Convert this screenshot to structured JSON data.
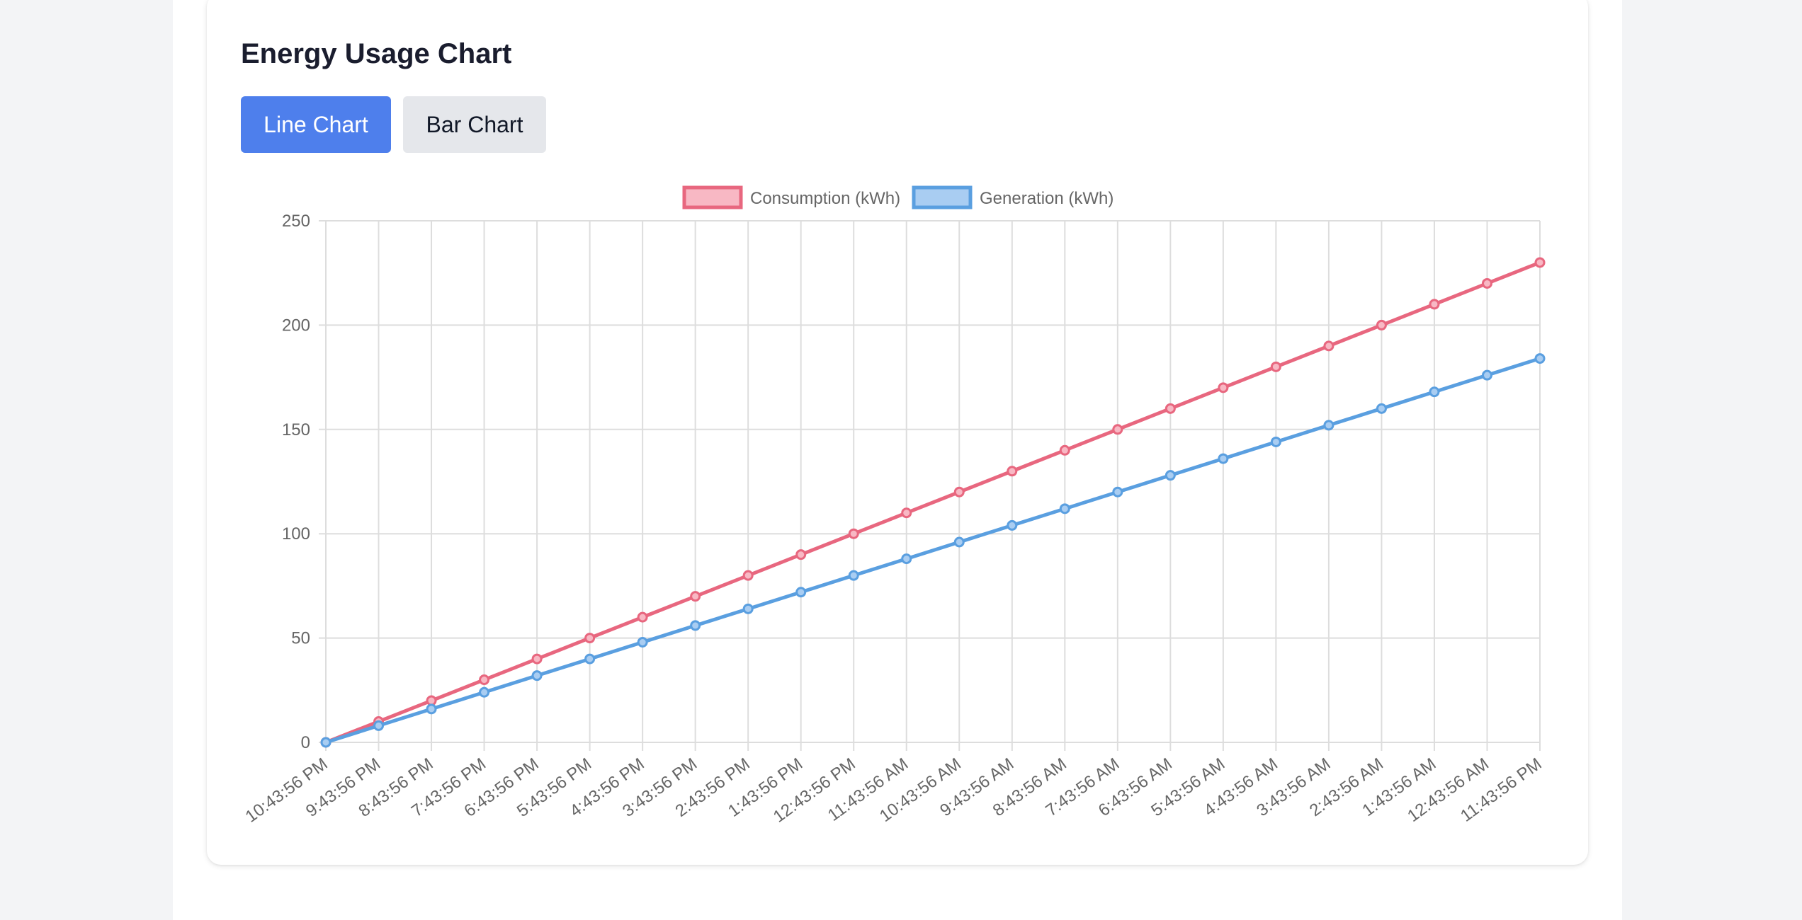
{
  "header": {
    "title": "Energy Usage Chart"
  },
  "toolbar": {
    "line_label": "Line Chart",
    "bar_label": "Bar Chart"
  },
  "chart_data": {
    "type": "line",
    "categories": [
      "10:43:56 PM",
      "9:43:56 PM",
      "8:43:56 PM",
      "7:43:56 PM",
      "6:43:56 PM",
      "5:43:56 PM",
      "4:43:56 PM",
      "3:43:56 PM",
      "2:43:56 PM",
      "1:43:56 PM",
      "12:43:56 PM",
      "11:43:56 AM",
      "10:43:56 AM",
      "9:43:56 AM",
      "8:43:56 AM",
      "7:43:56 AM",
      "6:43:56 AM",
      "5:43:56 AM",
      "4:43:56 AM",
      "3:43:56 AM",
      "2:43:56 AM",
      "1:43:56 AM",
      "12:43:56 AM",
      "11:43:56 PM"
    ],
    "series": [
      {
        "name": "Consumption (kWh)",
        "color": "#e8677f",
        "fill": "#f8b8c4",
        "values": [
          0,
          10,
          20,
          30,
          40,
          50,
          60,
          70,
          80,
          90,
          100,
          110,
          120,
          130,
          140,
          150,
          160,
          170,
          180,
          190,
          200,
          210,
          220,
          230
        ]
      },
      {
        "name": "Generation (kWh)",
        "color": "#5a9fe0",
        "fill": "#a9cdf2",
        "values": [
          0,
          8,
          16,
          24,
          32,
          40,
          48,
          56,
          64,
          72,
          80,
          88,
          96,
          104,
          112,
          120,
          128,
          136,
          144,
          152,
          160,
          168,
          176,
          184
        ]
      }
    ],
    "yticks": [
      "0",
      "50",
      "100",
      "150",
      "200",
      "250"
    ],
    "ylim": [
      0,
      250
    ],
    "grid": true,
    "legend": "top-center"
  }
}
